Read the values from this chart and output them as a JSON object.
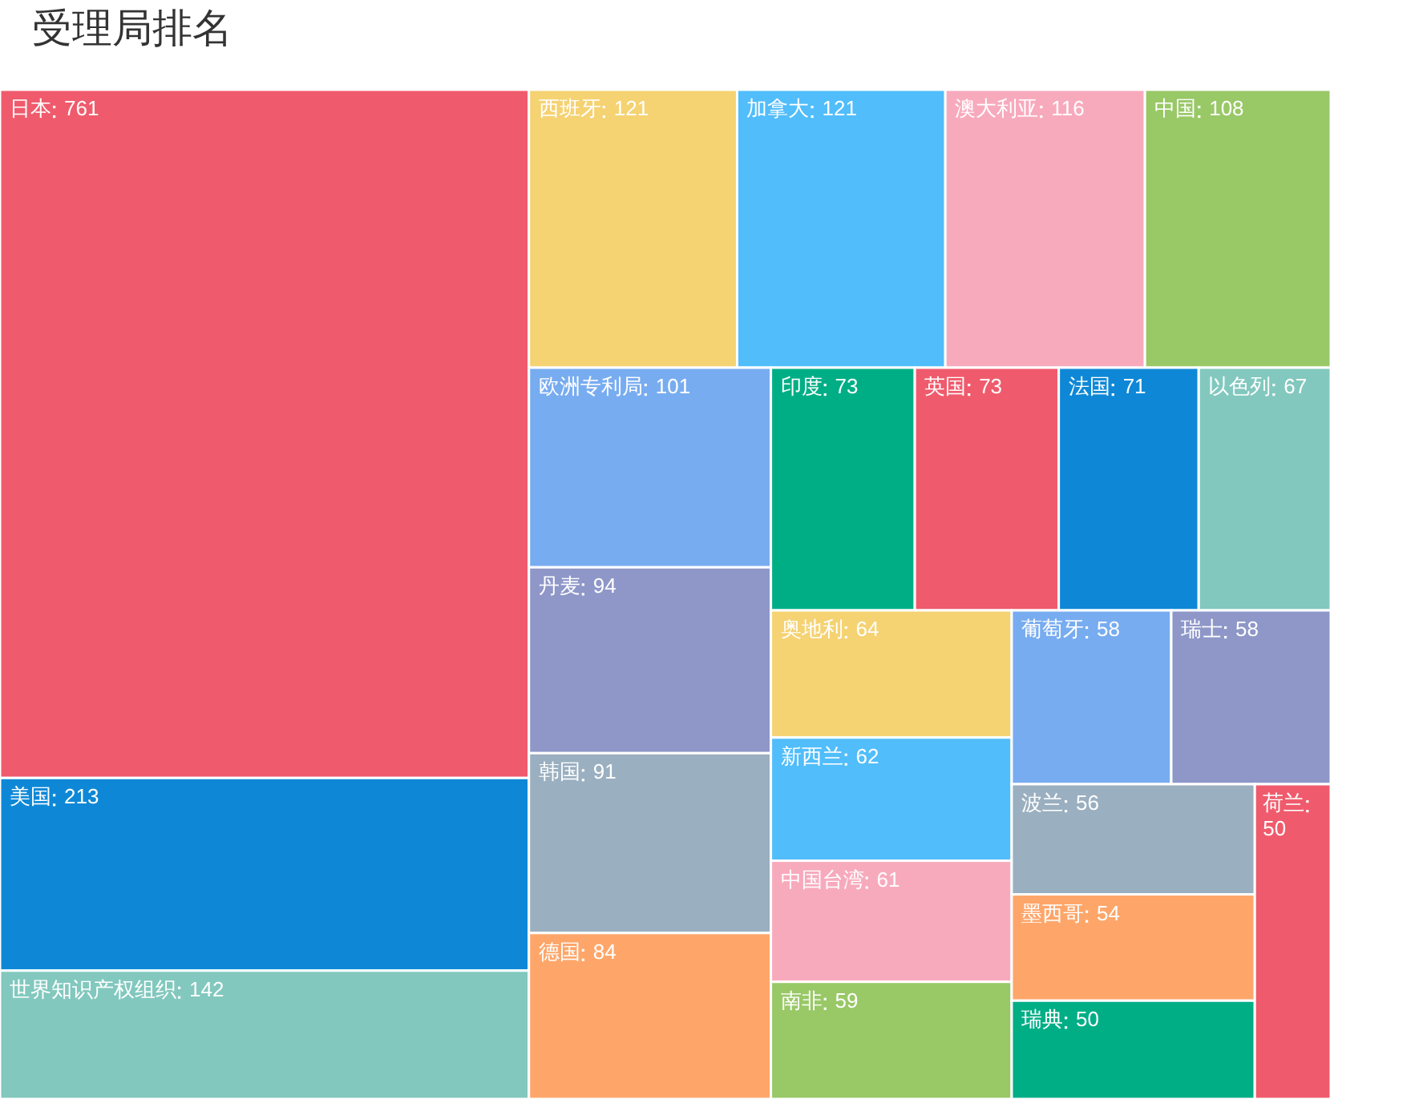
{
  "chart_data": {
    "type": "other",
    "title": "受理局排名",
    "data_labels": true,
    "categories": [
      "日本",
      "美国",
      "世界知识产权组织",
      "西班牙",
      "加拿大",
      "澳大利亚",
      "中国",
      "欧洲专利局",
      "丹麦",
      "韩国",
      "德国",
      "印度",
      "英国",
      "法国",
      "以色列",
      "奥地利",
      "新西兰",
      "中国台湾",
      "南非",
      "葡萄牙",
      "瑞士",
      "波兰",
      "墨西哥",
      "瑞典",
      "荷兰"
    ],
    "values": [
      761,
      213,
      142,
      121,
      121,
      116,
      108,
      101,
      94,
      91,
      84,
      73,
      73,
      71,
      67,
      64,
      62,
      61,
      59,
      58,
      58,
      56,
      54,
      50,
      50
    ],
    "colors": [
      "#ef5b6c",
      "#0e88d6",
      "#82c8be",
      "#f5d272",
      "#51bdfb",
      "#f8aabd",
      "#99c867",
      "#78acf0",
      "#8e97c8",
      "#9aafc0",
      "#fea66a",
      "#00ae86",
      "#ef5b6c",
      "#0e88d6",
      "#82c8be",
      "#f5d272",
      "#51bdfb",
      "#f8aabd",
      "#99c867",
      "#78acf0",
      "#8e97c8",
      "#9aafc0",
      "#fea66a",
      "#00ae86",
      "#ef5b6c"
    ]
  }
}
